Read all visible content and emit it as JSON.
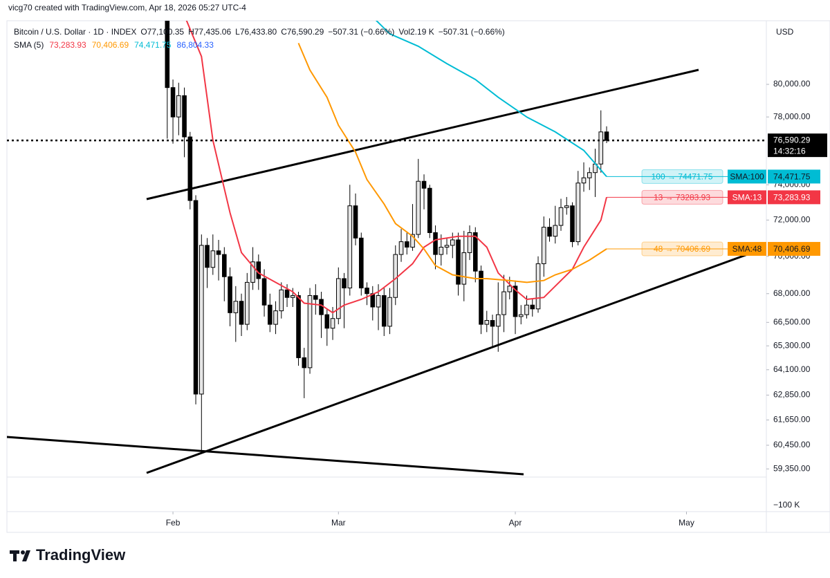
{
  "header": {
    "attribution": "vicg70 created with TradingView.com, Apr 18, 2026 05:27 UTC-4",
    "symbol": "Bitcoin / U.S. Dollar · 1D · INDEX",
    "stats": [
      "O77,100.35",
      "H77,435.06",
      "L76,433.80",
      "C76,590.29",
      "−507.31 (−0.66%)",
      "Vol2.19 K",
      "−507.31 (−0.66%)"
    ],
    "currency": "USD",
    "logo": "TradingView"
  },
  "chart_data": {
    "type": "candlestick",
    "log_scale": true,
    "xlim": [
      -28.1,
      105
    ],
    "ylim": [
      58975,
      84050
    ],
    "xticks": [
      {
        "value": 1,
        "label": "Feb"
      },
      {
        "value": 30,
        "label": "Mar"
      },
      {
        "value": 61,
        "label": "Apr"
      },
      {
        "value": 91,
        "label": "May"
      }
    ],
    "yticks": [
      {
        "value": 80000,
        "label": "80,000.00"
      },
      {
        "value": 78000,
        "label": "78,000.00"
      },
      {
        "value": 74000,
        "label": "74,000.00"
      },
      {
        "value": 72000,
        "label": "72,000.00"
      },
      {
        "value": 70000,
        "label": "70,000.00"
      },
      {
        "value": 68000,
        "label": "68,000.00"
      },
      {
        "value": 66500,
        "label": "66,500.00"
      },
      {
        "value": 65300,
        "label": "65,300.00"
      },
      {
        "value": 64100,
        "label": "64,100.00"
      },
      {
        "value": 62850,
        "label": "62,850.00"
      },
      {
        "value": 61650,
        "label": "61,650.00"
      },
      {
        "value": 60450,
        "label": "60,450.00"
      },
      {
        "value": 59350,
        "label": "59,350.00"
      }
    ],
    "open": [
      84200,
      79800,
      78000,
      79300,
      76800,
      73100,
      62900,
      70600,
      69400,
      70300,
      70100,
      68900,
      67000,
      67600,
      66400,
      68600,
      69700,
      68800,
      67400,
      66400,
      67100,
      68200,
      67800,
      67900,
      64700,
      64200,
      67900,
      67700,
      66900,
      66200,
      66700,
      68800,
      68300,
      72800,
      71000,
      68300,
      68000,
      67300,
      67900,
      66300,
      67800,
      70100,
      70800,
      70500,
      71200,
      74200,
      73800,
      71300,
      70100,
      70500,
      70600,
      70900,
      68500,
      70200,
      71300,
      69200,
      66400,
      66600,
      66300,
      66900,
      68100,
      68400,
      66800,
      66900,
      67400,
      67200,
      69600,
      71600,
      71100,
      71700,
      72700,
      72800,
      70800,
      74100,
      74400,
      74700,
      75200,
      77100.35
    ],
    "high": [
      84700,
      80300,
      80100,
      79800,
      77100,
      73400,
      71200,
      71000,
      71200,
      70900,
      70500,
      69400,
      68400,
      68000,
      69100,
      70500,
      70100,
      69300,
      68000,
      67600,
      68600,
      68500,
      68300,
      68100,
      65200,
      68300,
      68500,
      68100,
      67200,
      67300,
      69400,
      69100,
      74000,
      73500,
      71300,
      68600,
      68400,
      68500,
      68300,
      68300,
      70600,
      71500,
      71300,
      72900,
      75500,
      74600,
      74000,
      71700,
      71200,
      71000,
      71300,
      71300,
      71400,
      71700,
      71600,
      69500,
      67100,
      66900,
      68600,
      69000,
      68900,
      68700,
      67400,
      67900,
      67700,
      70000,
      72200,
      72100,
      72800,
      73200,
      73300,
      73000,
      74800,
      75300,
      75000,
      76100,
      78400,
      77435.06
    ],
    "low": [
      76700,
      76400,
      76900,
      75600,
      72600,
      62400,
      60100,
      68300,
      69000,
      68700,
      67600,
      66300,
      65500,
      65800,
      66100,
      68200,
      68200,
      66800,
      66000,
      65900,
      66700,
      67300,
      67300,
      64300,
      62700,
      63900,
      66900,
      65700,
      65300,
      65600,
      66400,
      66200,
      67900,
      70600,
      67900,
      67400,
      66600,
      66100,
      65800,
      65900,
      67400,
      69700,
      70100,
      70300,
      71000,
      72600,
      71000,
      69300,
      69500,
      70100,
      69900,
      67900,
      67600,
      69800,
      68600,
      65900,
      66000,
      65200,
      65000,
      66000,
      67700,
      65900,
      66400,
      66700,
      66800,
      67000,
      68900,
      70800,
      70700,
      71400,
      72300,
      70500,
      70600,
      73600,
      73700,
      73300,
      74700,
      76433.8
    ],
    "close": [
      79800,
      78000,
      79300,
      76800,
      73100,
      62900,
      70600,
      69400,
      70300,
      70100,
      68900,
      67000,
      67600,
      66400,
      68600,
      69700,
      68800,
      67400,
      66400,
      67100,
      68200,
      67800,
      67900,
      64700,
      64200,
      67900,
      67700,
      66900,
      66200,
      66700,
      68800,
      68300,
      72800,
      71000,
      68300,
      68000,
      67300,
      67900,
      66300,
      67800,
      70100,
      70800,
      70500,
      71200,
      74200,
      73800,
      71300,
      70100,
      70500,
      70600,
      70900,
      68500,
      70200,
      71300,
      69200,
      66400,
      66600,
      66300,
      66900,
      68100,
      68400,
      66800,
      66900,
      67400,
      67200,
      69600,
      71600,
      71100,
      71700,
      72700,
      72800,
      70800,
      74100,
      74400,
      74700,
      75200,
      77100.35,
      76590.29
    ],
    "up_color": "#e6e6e6",
    "down_color": "#000000",
    "last_price_label": "76,590.29",
    "countdown": "14:32:16",
    "volume_axis_label": "−100 K",
    "legend_title": "SMA (5)",
    "series": [
      {
        "name": "SMA:13",
        "color": "#f23645",
        "text_color": "#ffffff",
        "line_label": "13 → 73283.93",
        "price_label": "73,283.93",
        "x": [
          3,
          6,
          8,
          11,
          13,
          16,
          19,
          22,
          24,
          27,
          29,
          31,
          34,
          37,
          40,
          43,
          45,
          47,
          51,
          54,
          56,
          58,
          61,
          63,
          66,
          68,
          71,
          73,
          76,
          77
        ],
        "values": [
          84400,
          81750,
          76600,
          72400,
          70200,
          69100,
          68600,
          68100,
          67500,
          67400,
          67000,
          67400,
          67700,
          68100,
          68800,
          69600,
          70500,
          70900,
          71100,
          71100,
          70500,
          69100,
          68200,
          67700,
          67800,
          68400,
          69300,
          70500,
          72000,
          73283.93
        ]
      },
      {
        "name": "SMA:48",
        "color": "#ff9800",
        "text_color": "#131722",
        "line_label": "48 → 70406.69",
        "price_label": "70,406.69",
        "x": [
          23,
          25,
          28,
          30,
          33,
          35,
          38,
          40,
          43,
          45,
          47,
          50,
          54,
          56,
          60,
          63,
          66,
          68,
          71,
          74,
          77
        ],
        "values": [
          82600,
          80900,
          79200,
          77500,
          75900,
          74300,
          72900,
          71800,
          71100,
          70400,
          69500,
          69000,
          68800,
          68800,
          68700,
          68600,
          68700,
          69000,
          69300,
          69800,
          70406.69
        ]
      },
      {
        "name": "SMA:100",
        "color": "#00bcd4",
        "text_color": "#131722",
        "line_label": "100 → 74471.75",
        "price_label": "74,471.75",
        "x": [
          36,
          39,
          44,
          49,
          54,
          58,
          63,
          68,
          73,
          77
        ],
        "values": [
          84300,
          83200,
          82400,
          81300,
          80300,
          79200,
          78000,
          77100,
          76000,
          74471.75
        ]
      }
    ],
    "legend_extra": {
      "label": "86,804.33",
      "color": "#2962ff"
    }
  }
}
